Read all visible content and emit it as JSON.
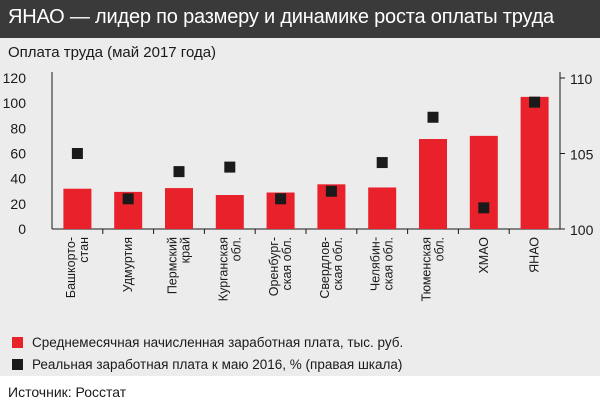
{
  "header": {
    "title": "ЯНАО — лидер по размеру и динамике роста оплаты труда"
  },
  "subtitle": "Оплата труда (май 2017 года)",
  "source": "Источник: Росстат",
  "colors": {
    "bar": "#e8212b",
    "marker": "#1a1a1a",
    "header_bg": "#3a3a3a",
    "panel_bg": "#ececec"
  },
  "legend": [
    {
      "label": "Среднемесячная начисленная  заработная плата, тыс. руб.",
      "color": "#e8212b"
    },
    {
      "label": "Реальная заработная плата к маю 2016, % (правая шкала)",
      "color": "#1a1a1a"
    }
  ],
  "chart_data": {
    "type": "bar",
    "categories": [
      [
        "Башкорто-",
        "стан"
      ],
      [
        "Удмуртия"
      ],
      [
        "Пермский",
        "край"
      ],
      [
        "Курганская",
        "обл."
      ],
      [
        "Оренбург-",
        "ская обл."
      ],
      [
        "Свердлов-",
        "ская обл."
      ],
      [
        "Челябин-",
        "ская обл."
      ],
      [
        "Тюменская",
        "обл."
      ],
      [
        "ХМАО"
      ],
      [
        "ЯНАО"
      ]
    ],
    "series": [
      {
        "values": [
          32,
          29.5,
          32.5,
          27,
          29,
          35.5,
          33,
          71.5,
          74,
          105
        ],
        "axis": "left",
        "mark": "bar"
      },
      {
        "values": [
          105.0,
          102.0,
          103.8,
          104.1,
          102.0,
          102.5,
          104.4,
          107.4,
          101.4,
          108.4
        ],
        "axis": "right",
        "mark": "square"
      }
    ],
    "y_left": {
      "min": 0,
      "max": 120,
      "ticks": [
        0,
        20,
        40,
        60,
        80,
        100,
        120
      ]
    },
    "y_right": {
      "min": 100,
      "max": 110,
      "ticks": [
        100,
        105,
        110
      ]
    },
    "grid": false,
    "legend_position": "bottom"
  }
}
